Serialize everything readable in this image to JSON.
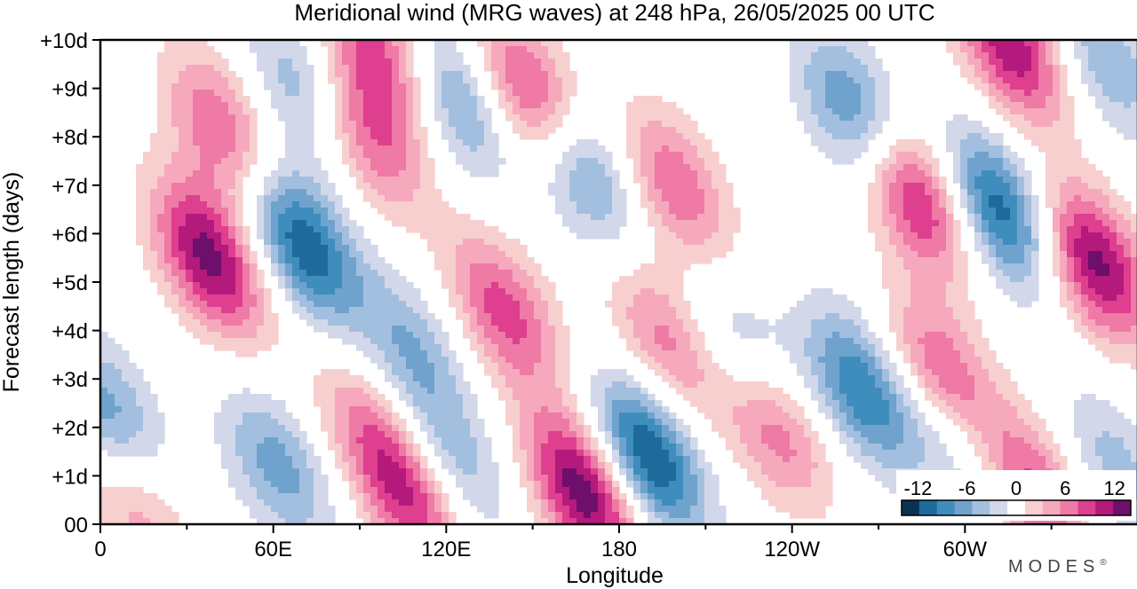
{
  "chart_data": {
    "type": "heatmap",
    "title": "Meridional wind (MRG waves) at  248 hPa,  26/05/2025  00 UTC",
    "xlabel": "Longitude",
    "ylabel": "Forecast length (days)",
    "x_ticks": [
      "0",
      "60E",
      "120E",
      "180",
      "120W",
      "60W"
    ],
    "x_tick_values": [
      0,
      60,
      120,
      180,
      240,
      300
    ],
    "x_minor_tick_values": [
      30,
      90,
      150,
      210,
      270,
      330
    ],
    "xlim": [
      0,
      360
    ],
    "y_ticks": [
      "00",
      "+1d",
      "+2d",
      "+3d",
      "+4d",
      "+5d",
      "+6d",
      "+7d",
      "+8d",
      "+9d",
      "+10d"
    ],
    "y_tick_values": [
      0,
      1,
      2,
      3,
      4,
      5,
      6,
      7,
      8,
      9,
      10
    ],
    "ylim": [
      0,
      10
    ],
    "colorbar": {
      "ticks": [
        "-12",
        "-6",
        "0",
        "6",
        "12"
      ],
      "tick_values": [
        -12,
        -6,
        0,
        6,
        12
      ],
      "levels": [
        -14,
        -12,
        -10,
        -8,
        -6,
        -4,
        -2,
        2,
        4,
        6,
        8,
        10,
        12,
        14
      ],
      "colors": [
        "#0a3352",
        "#1d6a9b",
        "#3f8dbd",
        "#6fa3cd",
        "#a3bfdf",
        "#d2d8ea",
        "#ffffff",
        "#f8cfcf",
        "#f6a9bd",
        "#ee7aa5",
        "#de3f8e",
        "#b4197c",
        "#6e0f6b"
      ]
    },
    "features": [
      {
        "sign": "neg",
        "lon": 3,
        "day": 2.2,
        "peak": 8
      },
      {
        "sign": "pos",
        "lon": 11,
        "day": 0.5,
        "peak": 6
      },
      {
        "sign": "pos",
        "lon": 38,
        "day": 5.5,
        "peak": 13
      },
      {
        "sign": "pos",
        "lon": 42,
        "day": 8.2,
        "peak": 8
      },
      {
        "sign": "neg",
        "lon": 62,
        "day": 1.2,
        "peak": 7
      },
      {
        "sign": "neg",
        "lon": 70,
        "day": 5.8,
        "peak": 12
      },
      {
        "sign": "neg",
        "lon": 70,
        "day": 9.0,
        "peak": 6
      },
      {
        "sign": "pos",
        "lon": 92,
        "day": 2.0,
        "peak": 5
      },
      {
        "sign": "pos",
        "lon": 93,
        "day": 8.0,
        "peak": 8
      },
      {
        "sign": "pos",
        "lon": 98,
        "day": 9.7,
        "peak": 9
      },
      {
        "sign": "pos",
        "lon": 108,
        "day": 0.6,
        "peak": 10
      },
      {
        "sign": "neg",
        "lon": 108,
        "day": 3.6,
        "peak": 6
      },
      {
        "sign": "neg",
        "lon": 122,
        "day": 1.2,
        "peak": 6
      },
      {
        "sign": "neg",
        "lon": 123,
        "day": 8.8,
        "peak": 8
      },
      {
        "sign": "pos",
        "lon": 140,
        "day": 4.4,
        "peak": 9
      },
      {
        "sign": "pos",
        "lon": 150,
        "day": 8.8,
        "peak": 11
      },
      {
        "sign": "pos",
        "lon": 168,
        "day": 0.7,
        "peak": 14
      },
      {
        "sign": "neg",
        "lon": 167,
        "day": 7.4,
        "peak": 9
      },
      {
        "sign": "neg",
        "lon": 190,
        "day": 1.4,
        "peak": 13
      },
      {
        "sign": "pos",
        "lon": 196,
        "day": 3.8,
        "peak": 7
      },
      {
        "sign": "pos",
        "lon": 199,
        "day": 7.0,
        "peak": 8
      },
      {
        "sign": "neg",
        "lon": 222,
        "day": 3.6,
        "peak": 5
      },
      {
        "sign": "pos",
        "lon": 234,
        "day": 2.0,
        "peak": 8
      },
      {
        "sign": "neg",
        "lon": 264,
        "day": 2.8,
        "peak": 10
      },
      {
        "sign": "neg",
        "lon": 262,
        "day": 8.5,
        "peak": 9
      },
      {
        "sign": "pos",
        "lon": 283,
        "day": 6.8,
        "peak": 12
      },
      {
        "sign": "pos",
        "lon": 292,
        "day": 3.0,
        "peak": 10
      },
      {
        "sign": "neg",
        "lon": 296,
        "day": 1.8,
        "peak": 6
      },
      {
        "sign": "neg",
        "lon": 312,
        "day": 6.5,
        "peak": 12
      },
      {
        "sign": "pos",
        "lon": 316,
        "day": 9.9,
        "peak": 12
      },
      {
        "sign": "pos",
        "lon": 324,
        "day": 0.7,
        "peak": 9
      },
      {
        "sign": "pos",
        "lon": 345,
        "day": 5.4,
        "peak": 13
      },
      {
        "sign": "neg",
        "lon": 352,
        "day": 1.2,
        "peak": 5
      },
      {
        "sign": "neg",
        "lon": 348,
        "day": 9.6,
        "peak": 6
      }
    ]
  },
  "brand": "MODES",
  "brand_mark": "®"
}
